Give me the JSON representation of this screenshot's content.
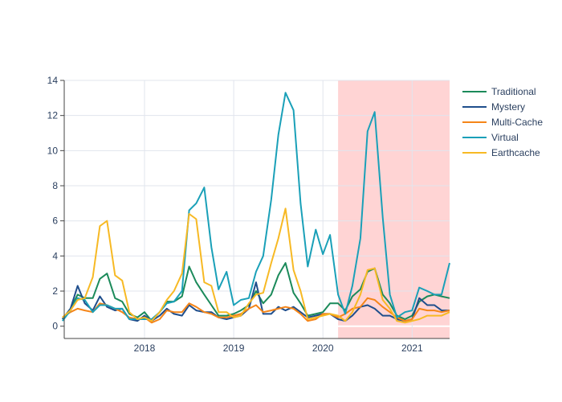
{
  "chart_data": {
    "type": "line",
    "title": "",
    "xlabel": "",
    "ylabel": "",
    "xlim": [
      2017.1,
      2021.42
    ],
    "ylim": [
      -0.7,
      14
    ],
    "grid": true,
    "legend_position": "top-right",
    "x_ticks": [
      2018,
      2019,
      2020,
      2021
    ],
    "x_tick_labels": [
      "2018",
      "2019",
      "2020",
      "2021"
    ],
    "y_ticks": [
      0,
      2,
      4,
      6,
      8,
      10,
      12,
      14
    ],
    "y_tick_labels": [
      "0",
      "2",
      "4",
      "6",
      "8",
      "10",
      "12",
      "14"
    ],
    "highlight_region": {
      "x_start": 2020.17,
      "x_end": 2021.42,
      "color": "#ffcccc"
    },
    "x": [
      2017.08,
      2017.17,
      2017.25,
      2017.33,
      2017.42,
      2017.5,
      2017.58,
      2017.67,
      2017.75,
      2017.83,
      2017.92,
      2018.0,
      2018.08,
      2018.17,
      2018.25,
      2018.33,
      2018.42,
      2018.5,
      2018.58,
      2018.67,
      2018.75,
      2018.83,
      2018.92,
      2019.0,
      2019.08,
      2019.17,
      2019.25,
      2019.33,
      2019.42,
      2019.5,
      2019.58,
      2019.67,
      2019.75,
      2019.83,
      2019.92,
      2020.0,
      2020.08,
      2020.17,
      2020.25,
      2020.33,
      2020.42,
      2020.5,
      2020.58,
      2020.67,
      2020.75,
      2020.83,
      2020.92,
      2021.0,
      2021.08,
      2021.17,
      2021.25,
      2021.33,
      2021.42
    ],
    "series": [
      {
        "name": "Traditional",
        "color": "#1b8a5a",
        "values": [
          0.4,
          1.0,
          1.8,
          1.6,
          1.6,
          2.7,
          3.0,
          1.6,
          1.4,
          0.7,
          0.5,
          0.8,
          0.3,
          0.8,
          1.4,
          1.4,
          1.7,
          3.4,
          2.5,
          1.8,
          1.2,
          0.6,
          0.6,
          0.7,
          0.9,
          1.2,
          2.0,
          1.3,
          1.8,
          2.9,
          3.6,
          1.9,
          1.3,
          0.6,
          0.7,
          0.8,
          1.3,
          1.3,
          0.9,
          1.7,
          2.1,
          3.1,
          3.3,
          1.8,
          1.3,
          0.6,
          0.4,
          0.6,
          1.4,
          1.7,
          1.8,
          1.7,
          1.6
        ]
      },
      {
        "name": "Mystery",
        "color": "#1f4e8c",
        "values": [
          0.4,
          1.0,
          2.3,
          1.3,
          0.9,
          1.7,
          1.1,
          0.9,
          1.0,
          0.4,
          0.3,
          0.6,
          0.3,
          0.6,
          1.0,
          0.7,
          0.6,
          1.2,
          0.9,
          0.8,
          0.8,
          0.5,
          0.4,
          0.5,
          0.6,
          1.0,
          2.5,
          0.7,
          0.7,
          1.1,
          0.9,
          1.1,
          0.8,
          0.5,
          0.6,
          0.7,
          0.7,
          0.4,
          0.3,
          0.6,
          1.1,
          1.2,
          1.0,
          0.6,
          0.6,
          0.4,
          0.3,
          0.4,
          1.6,
          1.2,
          1.2,
          0.9,
          0.9
        ]
      },
      {
        "name": "Multi-Cache",
        "color": "#f58518",
        "values": [
          0.5,
          0.8,
          1.0,
          0.9,
          0.8,
          1.3,
          1.2,
          1.0,
          0.8,
          0.5,
          0.4,
          0.5,
          0.2,
          0.4,
          0.9,
          0.8,
          0.8,
          1.3,
          1.1,
          0.8,
          0.7,
          0.5,
          0.5,
          0.6,
          0.7,
          1.0,
          1.2,
          0.8,
          0.9,
          1.0,
          1.1,
          1.0,
          0.7,
          0.3,
          0.4,
          0.7,
          0.7,
          0.5,
          0.7,
          1.0,
          1.1,
          1.6,
          1.5,
          1.1,
          0.8,
          0.5,
          0.3,
          0.4,
          1.0,
          0.9,
          0.9,
          0.8,
          0.9
        ]
      },
      {
        "name": "Virtual",
        "color": "#1aa0b8",
        "values": [
          0.3,
          0.9,
          1.6,
          1.5,
          0.8,
          1.2,
          1.2,
          1.0,
          1.0,
          0.4,
          0.4,
          0.4,
          0.4,
          0.8,
          1.3,
          1.4,
          2.0,
          6.6,
          7.0,
          7.9,
          4.5,
          2.1,
          3.1,
          1.2,
          1.5,
          1.6,
          3.1,
          4.0,
          7.2,
          10.9,
          13.3,
          12.3,
          7.0,
          3.4,
          5.5,
          4.1,
          5.2,
          1.8,
          0.7,
          2.3,
          5.0,
          11.1,
          12.2,
          6.2,
          1.8,
          0.5,
          0.8,
          0.9,
          2.2,
          2.0,
          1.8,
          1.8,
          3.6
        ]
      },
      {
        "name": "Earthcache",
        "color": "#f7b924",
        "values": [
          0.5,
          0.9,
          1.5,
          1.6,
          2.8,
          5.7,
          6.0,
          2.9,
          2.6,
          0.8,
          0.4,
          0.5,
          0.3,
          0.8,
          1.5,
          2.0,
          3.0,
          6.4,
          6.1,
          2.5,
          2.3,
          0.8,
          0.8,
          0.5,
          0.6,
          1.3,
          1.8,
          1.9,
          3.6,
          5.0,
          6.7,
          3.2,
          2.0,
          0.4,
          0.5,
          0.6,
          0.7,
          0.6,
          0.3,
          0.8,
          1.8,
          3.2,
          3.3,
          1.5,
          1.0,
          0.3,
          0.2,
          0.3,
          0.4,
          0.6,
          0.6,
          0.6,
          0.8
        ]
      }
    ]
  }
}
